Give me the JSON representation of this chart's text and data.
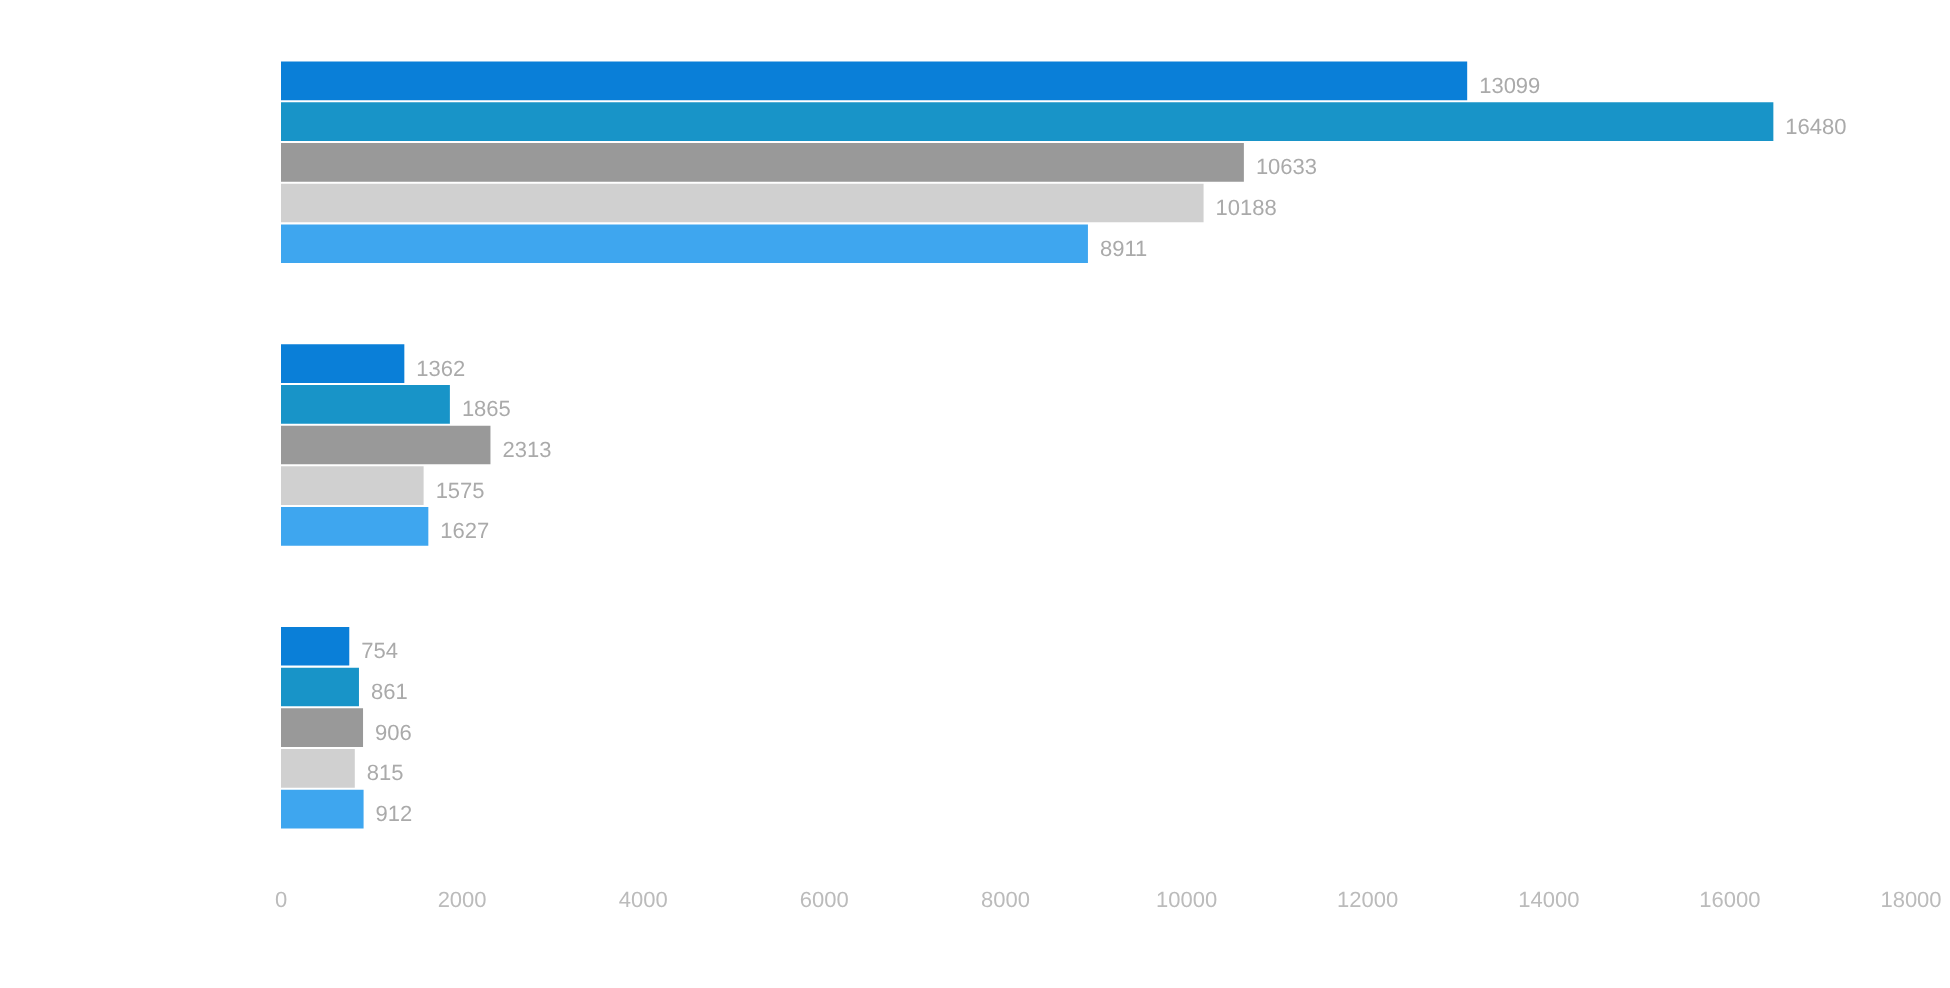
{
  "chart_data": {
    "type": "bar",
    "orientation": "horizontal",
    "categories": [
      null,
      null,
      null
    ],
    "series": [
      {
        "color": "#0a7fd8",
        "values": [
          13099,
          1362,
          754
        ]
      },
      {
        "color": "#1894c8",
        "values": [
          16480,
          1865,
          861
        ]
      },
      {
        "color": "#999999",
        "values": [
          10633,
          2313,
          906
        ]
      },
      {
        "color": "#d0d0d0",
        "values": [
          10188,
          1575,
          815
        ]
      },
      {
        "color": "#3ea6ef",
        "values": [
          8911,
          1627,
          912
        ]
      }
    ],
    "xlim": [
      0,
      18000
    ],
    "xticks": [
      0,
      2000,
      4000,
      6000,
      8000,
      10000,
      12000,
      14000,
      16000,
      18000
    ],
    "data_labels": true
  }
}
